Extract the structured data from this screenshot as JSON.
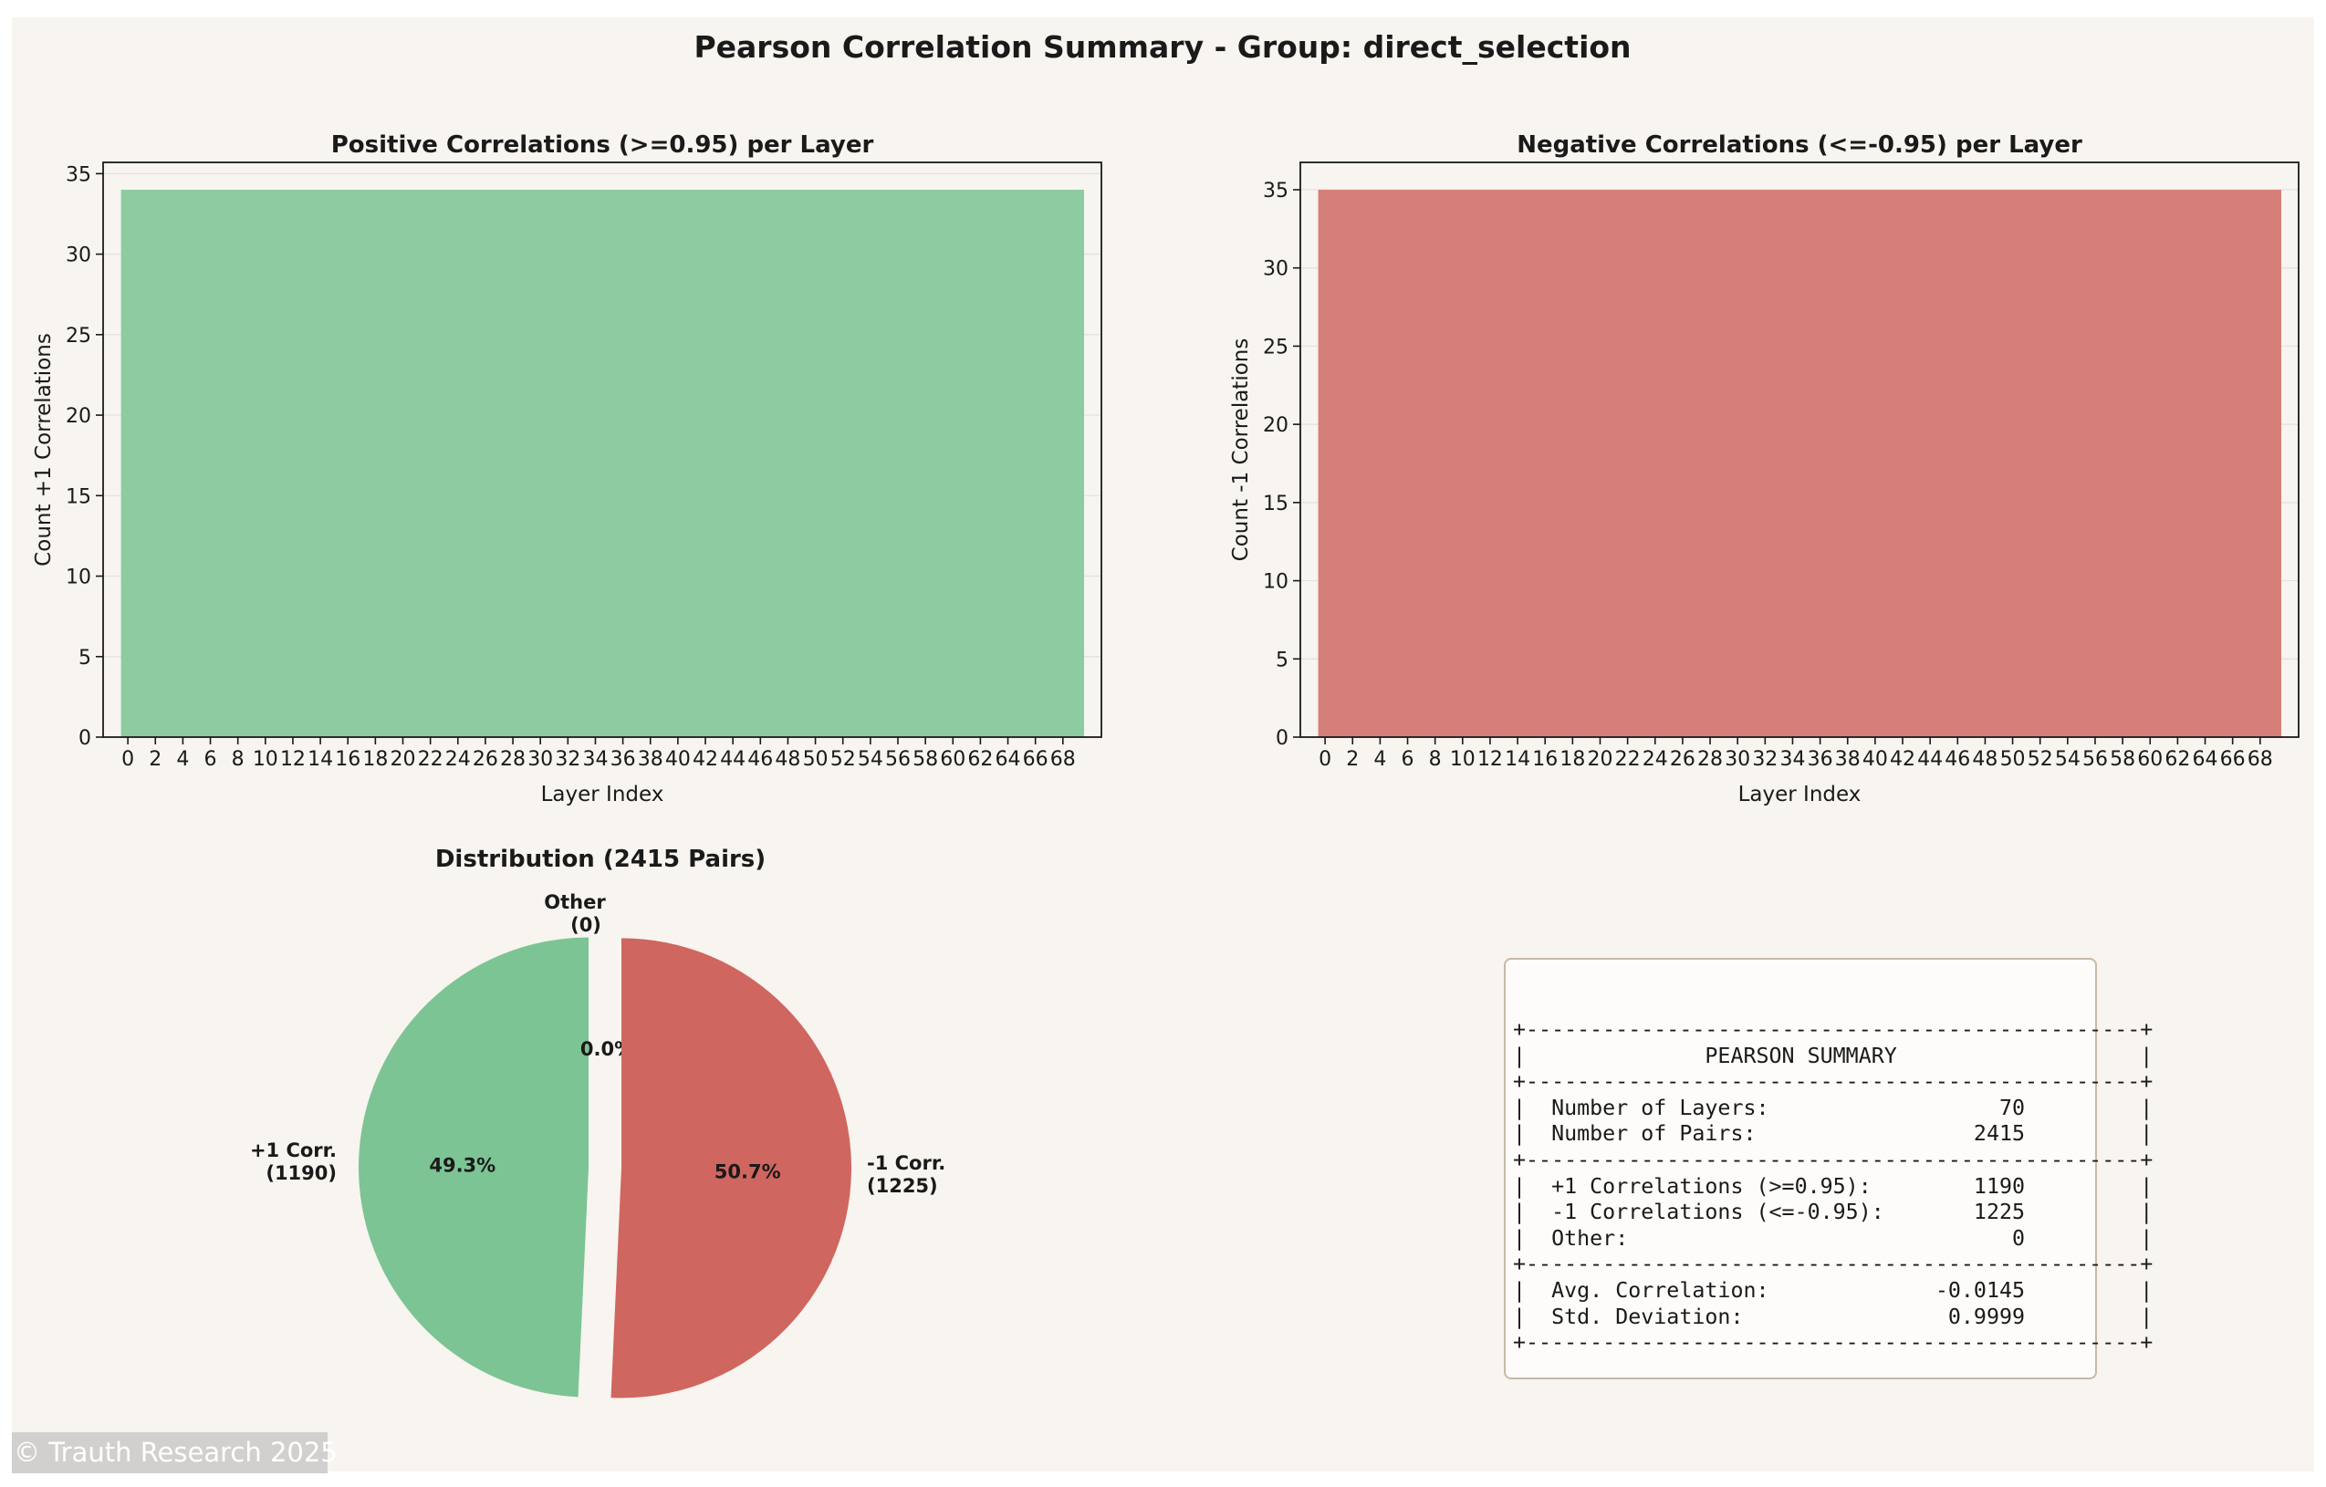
{
  "figure_title": "Pearson Correlation Summary - Group: direct_selection",
  "colors": {
    "background": "#f8f4ef",
    "positive": "#8ccca0",
    "negative": "#d67f78",
    "pie_positive": "#7cc494",
    "pie_negative": "#cf665f",
    "pie_other": "#bdbdbd"
  },
  "chart_data": [
    {
      "type": "bar",
      "title": "Positive Correlations (>=0.95) per Layer",
      "xlabel": "Layer Index",
      "ylabel": "Count +1 Correlations",
      "ylim": [
        0,
        35.7
      ],
      "yticks": [
        0,
        5,
        10,
        15,
        20,
        25,
        30,
        35
      ],
      "xticks": [
        0,
        2,
        4,
        6,
        8,
        10,
        12,
        14,
        16,
        18,
        20,
        22,
        24,
        26,
        28,
        30,
        32,
        34,
        36,
        38,
        40,
        42,
        44,
        46,
        48,
        50,
        52,
        54,
        56,
        58,
        60,
        62,
        64,
        66,
        68
      ],
      "layers": [
        0,
        1,
        2,
        3,
        4,
        5,
        6,
        7,
        8,
        9,
        10,
        11,
        12,
        13,
        14,
        15,
        16,
        17,
        18,
        19,
        20,
        21,
        22,
        23,
        24,
        25,
        26,
        27,
        28,
        29,
        30,
        31,
        32,
        33,
        34,
        35,
        36,
        37,
        38,
        39,
        40,
        41,
        42,
        43,
        44,
        45,
        46,
        47,
        48,
        49,
        50,
        51,
        52,
        53,
        54,
        55,
        56,
        57,
        58,
        59,
        60,
        61,
        62,
        63,
        64,
        65,
        66,
        67,
        68,
        69
      ],
      "values": [
        34,
        34,
        34,
        34,
        34,
        34,
        34,
        34,
        34,
        34,
        34,
        34,
        34,
        34,
        34,
        34,
        34,
        34,
        34,
        34,
        34,
        34,
        34,
        34,
        34,
        34,
        34,
        34,
        34,
        34,
        34,
        34,
        34,
        34,
        34,
        34,
        34,
        34,
        34,
        34,
        34,
        34,
        34,
        34,
        34,
        34,
        34,
        34,
        34,
        34,
        34,
        34,
        34,
        34,
        34,
        34,
        34,
        34,
        34,
        34,
        34,
        34,
        34,
        34,
        34,
        34,
        34,
        34,
        34,
        34
      ],
      "grid": "y"
    },
    {
      "type": "bar",
      "title": "Negative Correlations (<=-0.95) per Layer",
      "xlabel": "Layer Index",
      "ylabel": "Count -1 Correlations",
      "ylim": [
        0,
        36.75
      ],
      "yticks": [
        0,
        5,
        10,
        15,
        20,
        25,
        30,
        35
      ],
      "xticks": [
        0,
        2,
        4,
        6,
        8,
        10,
        12,
        14,
        16,
        18,
        20,
        22,
        24,
        26,
        28,
        30,
        32,
        34,
        36,
        38,
        40,
        42,
        44,
        46,
        48,
        50,
        52,
        54,
        56,
        58,
        60,
        62,
        64,
        66,
        68
      ],
      "layers": [
        0,
        1,
        2,
        3,
        4,
        5,
        6,
        7,
        8,
        9,
        10,
        11,
        12,
        13,
        14,
        15,
        16,
        17,
        18,
        19,
        20,
        21,
        22,
        23,
        24,
        25,
        26,
        27,
        28,
        29,
        30,
        31,
        32,
        33,
        34,
        35,
        36,
        37,
        38,
        39,
        40,
        41,
        42,
        43,
        44,
        45,
        46,
        47,
        48,
        49,
        50,
        51,
        52,
        53,
        54,
        55,
        56,
        57,
        58,
        59,
        60,
        61,
        62,
        63,
        64,
        65,
        66,
        67,
        68,
        69
      ],
      "values": [
        35,
        35,
        35,
        35,
        35,
        35,
        35,
        35,
        35,
        35,
        35,
        35,
        35,
        35,
        35,
        35,
        35,
        35,
        35,
        35,
        35,
        35,
        35,
        35,
        35,
        35,
        35,
        35,
        35,
        35,
        35,
        35,
        35,
        35,
        35,
        35,
        35,
        35,
        35,
        35,
        35,
        35,
        35,
        35,
        35,
        35,
        35,
        35,
        35,
        35,
        35,
        35,
        35,
        35,
        35,
        35,
        35,
        35,
        35,
        35,
        35,
        35,
        35,
        35,
        35,
        35,
        35,
        35,
        35,
        35
      ],
      "grid": "y"
    },
    {
      "type": "pie",
      "title": "Distribution (2415 Pairs)",
      "slices": [
        {
          "label": "+1 Corr.",
          "count_label": "(1190)",
          "value": 1190,
          "pct_label": "49.3%"
        },
        {
          "label": "Other",
          "count_label": "(0)",
          "value": 0,
          "pct_label": "0.0%"
        },
        {
          "label": "-1 Corr.",
          "count_label": "(1225)",
          "value": 1225,
          "pct_label": "50.7%"
        }
      ]
    }
  ],
  "summary": {
    "text": "+------------------------------------------------+\n|              PEARSON SUMMARY                   |\n+------------------------------------------------+\n|  Number of Layers:                  70         |\n|  Number of Pairs:                 2415         |\n+------------------------------------------------+\n|  +1 Correlations (>=0.95):        1190         |\n|  -1 Correlations (<=-0.95):       1225         |\n|  Other:                              0         |\n+------------------------------------------------+\n|  Avg. Correlation:             -0.0145         |\n|  Std. Deviation:                0.9999         |\n+------------------------------------------------+"
  },
  "watermark": "© Trauth Research 2025"
}
